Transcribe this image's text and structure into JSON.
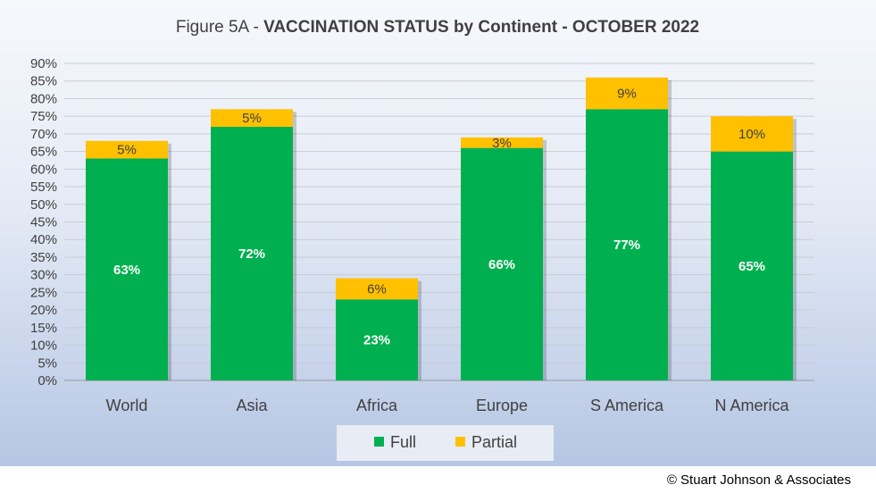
{
  "chart_data": {
    "type": "bar",
    "stacked": true,
    "title_prefix": "Figure 5A - ",
    "title_main": "VACCINATION STATUS by Continent - OCTOBER 2022",
    "categories": [
      "World",
      "Asia",
      "Africa",
      "Europe",
      "S America",
      "N America"
    ],
    "series": [
      {
        "name": "Full",
        "color": "#00b050",
        "values": [
          63,
          72,
          23,
          66,
          77,
          65
        ],
        "labels": [
          "63%",
          "72%",
          "23%",
          "66%",
          "77%",
          "65%"
        ]
      },
      {
        "name": "Partial",
        "color": "#ffc000",
        "values": [
          5,
          5,
          6,
          3,
          9,
          10
        ],
        "labels": [
          "5%",
          "5%",
          "6%",
          "3%",
          "9%",
          "10%"
        ]
      }
    ],
    "ylim": [
      0,
      90
    ],
    "yticks": [
      "0%",
      "5%",
      "10%",
      "15%",
      "20%",
      "25%",
      "30%",
      "35%",
      "40%",
      "45%",
      "50%",
      "55%",
      "60%",
      "65%",
      "70%",
      "75%",
      "80%",
      "85%",
      "90%"
    ],
    "grid": true,
    "legend": "bottom"
  },
  "copyright": "© Stuart Johnson & Associates"
}
